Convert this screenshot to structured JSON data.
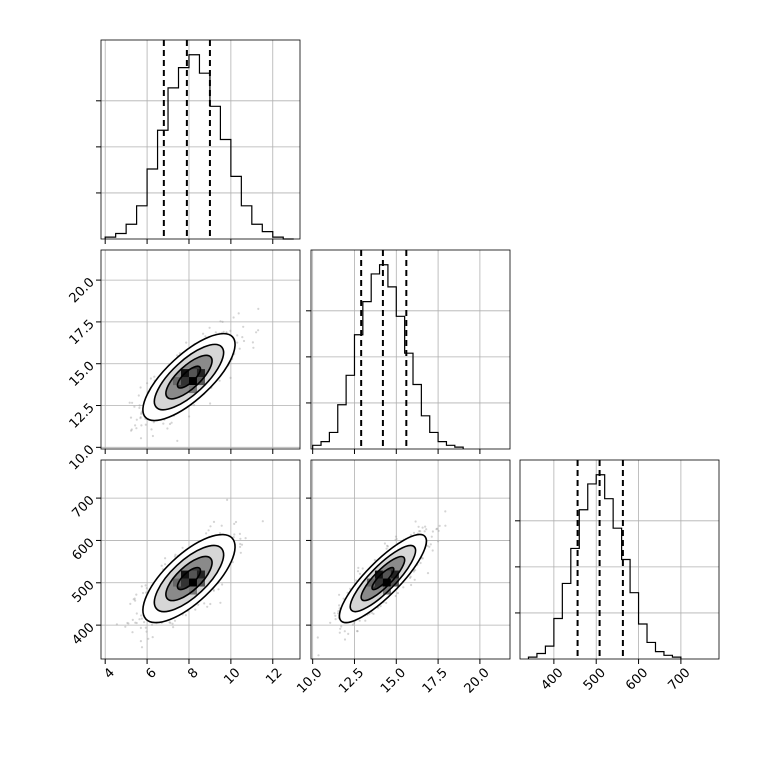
{
  "chart_data": {
    "type": "corner",
    "parameters": [
      {
        "index": 0,
        "ticks": [
          4,
          6,
          8,
          10,
          12
        ],
        "tick_labels": [
          "4",
          "6",
          "8",
          "10",
          "12"
        ],
        "range": [
          3.8,
          13.3
        ],
        "hist_bins": [
          [
            4.0,
            0.01
          ],
          [
            4.5,
            0.03
          ],
          [
            5.0,
            0.08
          ],
          [
            5.5,
            0.18
          ],
          [
            6.0,
            0.38
          ],
          [
            6.5,
            0.59
          ],
          [
            7.0,
            0.82
          ],
          [
            7.5,
            0.93
          ],
          [
            8.0,
            1.0
          ],
          [
            8.5,
            0.9
          ],
          [
            9.0,
            0.72
          ],
          [
            9.5,
            0.54
          ],
          [
            10.0,
            0.34
          ],
          [
            10.5,
            0.18
          ],
          [
            11.0,
            0.08
          ],
          [
            11.5,
            0.04
          ],
          [
            12.0,
            0.01
          ],
          [
            12.5,
            0.0
          ]
        ],
        "quantiles": [
          6.8,
          7.9,
          9.0
        ]
      },
      {
        "index": 1,
        "ticks": [
          10.0,
          12.5,
          15.0,
          17.5,
          20.0
        ],
        "tick_labels": [
          "10.0",
          "12.5",
          "15.0",
          "17.5",
          "20.0"
        ],
        "range": [
          9.9,
          21.8
        ],
        "hist_bins": [
          [
            10.0,
            0.02
          ],
          [
            10.5,
            0.04
          ],
          [
            11.0,
            0.09
          ],
          [
            11.5,
            0.24
          ],
          [
            12.0,
            0.4
          ],
          [
            12.5,
            0.62
          ],
          [
            13.0,
            0.8
          ],
          [
            13.5,
            0.95
          ],
          [
            14.0,
            1.0
          ],
          [
            14.5,
            0.88
          ],
          [
            15.0,
            0.72
          ],
          [
            15.5,
            0.52
          ],
          [
            16.0,
            0.35
          ],
          [
            16.5,
            0.18
          ],
          [
            17.0,
            0.09
          ],
          [
            17.5,
            0.04
          ],
          [
            18.0,
            0.02
          ],
          [
            18.5,
            0.01
          ]
        ],
        "quantiles": [
          12.9,
          14.2,
          15.6
        ]
      },
      {
        "index": 2,
        "ticks": [
          400,
          500,
          600,
          700
        ],
        "tick_labels": [
          "400",
          "500",
          "600",
          "700"
        ],
        "range": [
          320,
          790
        ],
        "hist_bins": [
          [
            340,
            0.01
          ],
          [
            360,
            0.03
          ],
          [
            380,
            0.07
          ],
          [
            400,
            0.22
          ],
          [
            420,
            0.41
          ],
          [
            440,
            0.6
          ],
          [
            460,
            0.81
          ],
          [
            480,
            0.95
          ],
          [
            500,
            1.0
          ],
          [
            520,
            0.87
          ],
          [
            540,
            0.71
          ],
          [
            560,
            0.54
          ],
          [
            580,
            0.36
          ],
          [
            600,
            0.19
          ],
          [
            620,
            0.09
          ],
          [
            640,
            0.04
          ],
          [
            660,
            0.02
          ],
          [
            680,
            0.01
          ]
        ],
        "quantiles": [
          456,
          508,
          563
        ]
      }
    ],
    "pairs": [
      {
        "x": 0,
        "y": 1,
        "mean": [
          8.0,
          14.2
        ],
        "sd": [
          1.1,
          1.3
        ],
        "corr": 0.75
      },
      {
        "x": 0,
        "y": 2,
        "mean": [
          8.0,
          510
        ],
        "sd": [
          1.1,
          52
        ],
        "corr": 0.72
      },
      {
        "x": 1,
        "y": 2,
        "mean": [
          14.2,
          510
        ],
        "sd": [
          1.3,
          52
        ],
        "corr": 0.85
      }
    ],
    "contour_levels": [
      0.5,
      1.0,
      1.5,
      2.0
    ],
    "grid": true,
    "colors": {
      "line": "#000000",
      "grid": "#b0b0b0",
      "points": "#a0a0a0"
    }
  }
}
